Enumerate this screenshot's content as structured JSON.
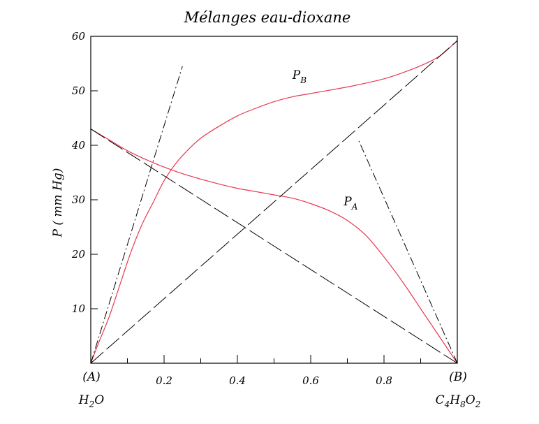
{
  "chart_data": {
    "type": "line",
    "title": "Mélanges eau-dioxane",
    "ylabel": "P ( mm Hg)",
    "xlabel": "",
    "xlim": [
      0,
      1
    ],
    "ylim": [
      0,
      60
    ],
    "x_ticks": [
      0.2,
      0.4,
      0.6,
      0.8
    ],
    "x_tick_labels": [
      "0.2",
      "0.4",
      "0.6",
      "0.8"
    ],
    "y_ticks": [
      10,
      20,
      30,
      40,
      50,
      60
    ],
    "y_tick_labels": [
      "10",
      "20",
      "30",
      "40",
      "50",
      "60"
    ],
    "x_minor_ticks": [
      0.1,
      0.3,
      0.5,
      0.7,
      0.9
    ],
    "endpoints": {
      "left": {
        "label": "(A)",
        "formula_parts": [
          [
            "H",
            ""
          ],
          [
            "2",
            "sub"
          ],
          [
            "O",
            ""
          ]
        ]
      },
      "right": {
        "label": "(B)",
        "formula_parts": [
          [
            "C",
            ""
          ],
          [
            "4",
            "sub"
          ],
          [
            "H",
            ""
          ],
          [
            "8",
            "sub"
          ],
          [
            "O",
            ""
          ],
          [
            "2",
            "sub"
          ]
        ]
      }
    },
    "series_labels": [
      {
        "main": "P",
        "sub": "B",
        "x": 0.55,
        "y": 52.2
      },
      {
        "main": "P",
        "sub": "A",
        "x": 0.69,
        "y": 29.0
      }
    ],
    "series": [
      {
        "color": "#e8384f",
        "style": "solid",
        "points": [
          [
            0,
            0
          ],
          [
            0.02,
            3.5
          ],
          [
            0.05,
            8.5
          ],
          [
            0.08,
            14.5
          ],
          [
            0.11,
            20.5
          ],
          [
            0.14,
            25.5
          ],
          [
            0.17,
            29.5
          ],
          [
            0.2,
            33.5
          ],
          [
            0.23,
            36.5
          ],
          [
            0.26,
            38.8
          ],
          [
            0.3,
            41.3
          ],
          [
            0.35,
            43.5
          ],
          [
            0.4,
            45.4
          ],
          [
            0.45,
            46.8
          ],
          [
            0.5,
            48.0
          ],
          [
            0.55,
            48.9
          ],
          [
            0.6,
            49.5
          ],
          [
            0.65,
            50.1
          ],
          [
            0.7,
            50.7
          ],
          [
            0.75,
            51.4
          ],
          [
            0.8,
            52.2
          ],
          [
            0.85,
            53.3
          ],
          [
            0.9,
            54.6
          ],
          [
            0.95,
            56.3
          ],
          [
            1.0,
            59.2
          ]
        ]
      },
      {
        "color": "#e8384f",
        "style": "solid",
        "points": [
          [
            0,
            43.0
          ],
          [
            0.05,
            41.0
          ],
          [
            0.1,
            39.0
          ],
          [
            0.15,
            37.4
          ],
          [
            0.2,
            36.0
          ],
          [
            0.25,
            34.8
          ],
          [
            0.3,
            33.8
          ],
          [
            0.35,
            32.9
          ],
          [
            0.4,
            32.1
          ],
          [
            0.45,
            31.5
          ],
          [
            0.5,
            30.9
          ],
          [
            0.55,
            30.3
          ],
          [
            0.6,
            29.3
          ],
          [
            0.65,
            28.0
          ],
          [
            0.7,
            26.2
          ],
          [
            0.75,
            23.5
          ],
          [
            0.8,
            19.5
          ],
          [
            0.85,
            15.0
          ],
          [
            0.9,
            10.0
          ],
          [
            0.95,
            5.0
          ],
          [
            1.0,
            0
          ]
        ]
      },
      {
        "color": "#000000",
        "style": "long-dash",
        "points": [
          [
            0,
            43.0
          ],
          [
            1.0,
            0
          ]
        ]
      },
      {
        "color": "#000000",
        "style": "long-dash",
        "points": [
          [
            0,
            0
          ],
          [
            1.0,
            59.2
          ]
        ]
      },
      {
        "color": "#000000",
        "style": "dash-dot",
        "points": [
          [
            0,
            0
          ],
          [
            0.25,
            54.5
          ]
        ]
      },
      {
        "color": "#000000",
        "style": "dash-dot",
        "points": [
          [
            1.0,
            0
          ],
          [
            0.73,
            41.0
          ]
        ]
      }
    ]
  }
}
